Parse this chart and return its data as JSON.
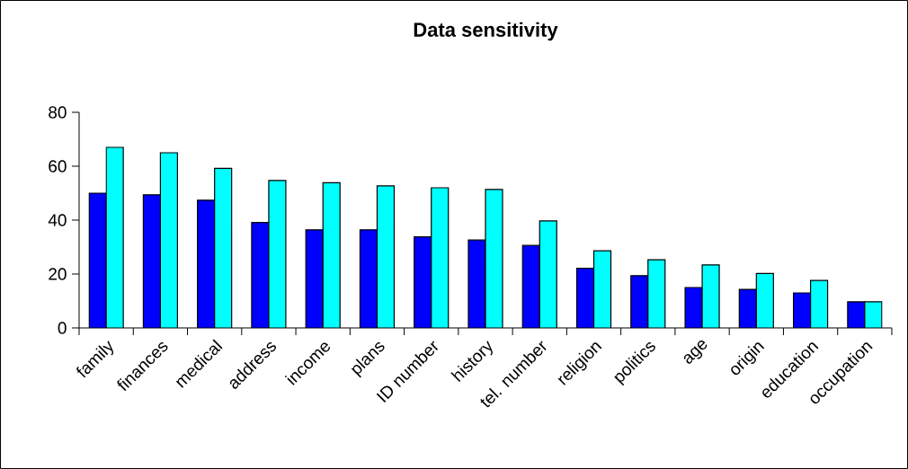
{
  "chart_data": {
    "type": "bar",
    "title": "Data sensitivity",
    "categories": [
      "family",
      "finances",
      "medical",
      "address",
      "income",
      "plans",
      "ID number",
      "history",
      "tel. number",
      "religion",
      "politics",
      "age",
      "origin",
      "education",
      "occupation"
    ],
    "series": [
      {
        "color": "#0000ff",
        "values": [
          50,
          49.4,
          47.4,
          39.1,
          36.4,
          36.4,
          33.8,
          32.6,
          30.6,
          22.1,
          19.4,
          15,
          14.3,
          13,
          9.7
        ]
      },
      {
        "color": "#00ffff",
        "values": [
          67,
          65,
          59.2,
          54.7,
          53.9,
          52.7,
          52,
          51.4,
          39.7,
          28.6,
          25.3,
          23.4,
          20.2,
          17.6,
          9.7
        ]
      }
    ],
    "ylim": [
      0,
      80
    ],
    "yticks": [
      0,
      20,
      40,
      60,
      80
    ]
  }
}
